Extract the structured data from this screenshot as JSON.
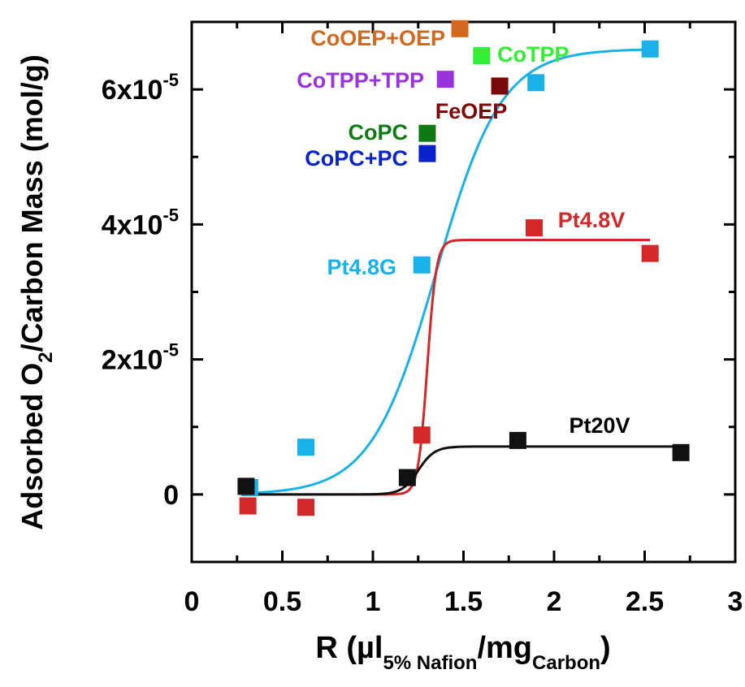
{
  "chart_data": {
    "type": "scatter",
    "title": "",
    "xlabel": {
      "prefix": "R (µl",
      "sub1": "5% Nafion",
      "mid": "/mg",
      "sub2": "Carbon",
      "suffix": ")"
    },
    "ylabel": {
      "prefix": "Adsorbed O",
      "sub": "2",
      "suffix": "/Carbon Mass (mol/g)"
    },
    "xlim": [
      0,
      3
    ],
    "ylim": [
      -1e-05,
      7e-05
    ],
    "x_ticks": [
      {
        "value": 0,
        "label": "0"
      },
      {
        "value": 0.5,
        "label": "0.5"
      },
      {
        "value": 1,
        "label": "1"
      },
      {
        "value": 1.5,
        "label": "1.5"
      },
      {
        "value": 2,
        "label": "2"
      },
      {
        "value": 2.5,
        "label": "2.5"
      },
      {
        "value": 3,
        "label": "3"
      }
    ],
    "y_ticks": [
      {
        "value": 0,
        "base": "0",
        "exp": ""
      },
      {
        "value": 2e-05,
        "base": "2x10",
        "exp": "-5"
      },
      {
        "value": 4e-05,
        "base": "4x10",
        "exp": "-5"
      },
      {
        "value": 6e-05,
        "base": "6x10",
        "exp": "-5"
      }
    ],
    "grid": false,
    "series": [
      {
        "name": "Pt4.8G",
        "color": "#1ab0e8",
        "x": [
          0.32,
          0.63,
          1.27,
          1.9,
          2.53
        ],
        "y": [
          1e-06,
          7e-06,
          3.4e-05,
          6.1e-05,
          6.6e-05
        ],
        "fit": {
          "type": "logistic",
          "base": 0,
          "top": 6.6e-05,
          "x0": 1.35,
          "w": 0.18
        }
      },
      {
        "name": "Pt4.8V",
        "color": "#d42828",
        "x": [
          0.31,
          0.63,
          1.27,
          1.89,
          2.53
        ],
        "y": [
          -1.7e-06,
          -1.9e-06,
          8.8e-06,
          3.95e-05,
          3.57e-05
        ],
        "fit": {
          "type": "logistic",
          "base": 0,
          "top": 3.77e-05,
          "x0": 1.3,
          "w": 0.025
        }
      },
      {
        "name": "Pt20V",
        "color": "#111111",
        "x": [
          0.3,
          1.19,
          1.8,
          2.7
        ],
        "y": [
          1.2e-06,
          2.5e-06,
          8e-06,
          6.2e-06
        ],
        "fit": {
          "type": "logistic",
          "base": 0,
          "top": 7.1e-06,
          "x0": 1.25,
          "w": 0.045
        }
      }
    ],
    "points": [
      {
        "name": "CoOEP+OEP",
        "color": "#d2691e",
        "x": 1.48,
        "y": 6.9e-05
      },
      {
        "name": "CoTPP",
        "color": "#33ee33",
        "x": 1.6,
        "y": 6.5e-05
      },
      {
        "name": "CoTPP+TPP",
        "color": "#9933dd",
        "x": 1.4,
        "y": 6.15e-05
      },
      {
        "name": "FeOEP",
        "color": "#7a0a0a",
        "x": 1.7,
        "y": 6.05e-05
      },
      {
        "name": "CoPC",
        "color": "#0e7a14",
        "x": 1.3,
        "y": 5.35e-05
      },
      {
        "name": "CoPC+PC",
        "color": "#0a22cc",
        "x": 1.3,
        "y": 5.05e-05
      }
    ]
  }
}
